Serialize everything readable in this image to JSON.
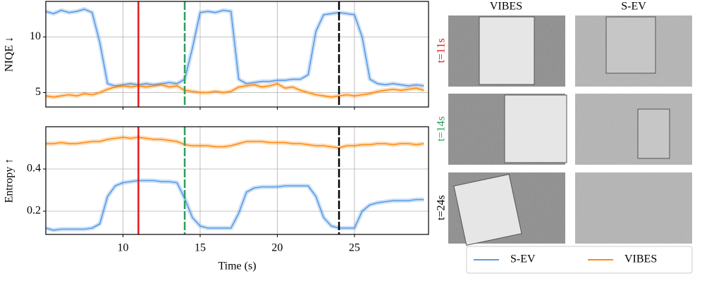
{
  "chart_data": [
    {
      "type": "line",
      "ylabel": "NIQE ↓",
      "xlim": [
        5,
        29.8
      ],
      "xticks": [
        10,
        15,
        20,
        25
      ],
      "ylim": [
        3.7,
        13.2
      ],
      "yticks": [
        5,
        10
      ],
      "grid": true,
      "x": [
        5,
        5.5,
        6,
        6.5,
        7,
        7.5,
        8,
        8.5,
        9,
        9.5,
        10,
        10.5,
        11,
        11.5,
        12,
        12.5,
        13,
        13.5,
        14,
        14.5,
        15,
        15.5,
        16,
        16.5,
        17,
        17.5,
        18,
        18.5,
        19,
        19.5,
        20,
        20.5,
        21,
        21.5,
        22,
        22.5,
        23,
        23.5,
        24,
        24.5,
        25,
        25.5,
        26,
        26.5,
        27,
        27.5,
        28,
        28.5,
        29,
        29.5
      ],
      "series": [
        {
          "name": "S-EV",
          "color": "#5a9be6",
          "values": [
            12.3,
            12.1,
            12.4,
            12.2,
            12.3,
            12.5,
            12.2,
            9.5,
            5.8,
            5.6,
            5.7,
            5.8,
            5.7,
            5.8,
            5.7,
            5.8,
            5.9,
            5.8,
            6.2,
            9.0,
            12.2,
            12.3,
            12.2,
            12.4,
            12.3,
            6.2,
            5.8,
            5.9,
            6.0,
            6.0,
            6.1,
            6.1,
            6.2,
            6.2,
            6.6,
            10.5,
            12.0,
            12.1,
            12.2,
            12.1,
            12.0,
            10.0,
            6.2,
            5.8,
            5.7,
            5.8,
            5.7,
            5.6,
            5.7,
            5.6
          ]
        },
        {
          "name": "VIBES",
          "color": "#ff8a12",
          "values": [
            4.7,
            4.6,
            4.7,
            4.8,
            4.7,
            4.9,
            4.8,
            5.0,
            5.3,
            5.5,
            5.6,
            5.5,
            5.6,
            5.5,
            5.6,
            5.7,
            5.5,
            5.6,
            5.2,
            5.1,
            5.0,
            5.0,
            5.1,
            5.0,
            5.1,
            5.5,
            5.6,
            5.7,
            5.5,
            5.6,
            5.8,
            5.4,
            5.5,
            5.2,
            5.0,
            4.8,
            4.7,
            4.6,
            4.7,
            4.8,
            4.7,
            4.8,
            4.9,
            5.1,
            5.2,
            5.3,
            5.2,
            5.3,
            5.4,
            5.2
          ]
        }
      ],
      "vlines": [
        {
          "x": 11,
          "color": "#e31a1c",
          "dashed": false
        },
        {
          "x": 14,
          "color": "#2ca05a",
          "dashed": true
        },
        {
          "x": 24,
          "color": "#000000",
          "dashed": true
        }
      ]
    },
    {
      "type": "line",
      "ylabel": "Entropy ↑",
      "xlabel": "Time (s)",
      "xlim": [
        5,
        29.8
      ],
      "xticks": [
        10,
        15,
        20,
        25
      ],
      "ylim": [
        0.09,
        0.6
      ],
      "yticks": [
        0.2,
        0.4
      ],
      "grid": true,
      "x": [
        5,
        5.5,
        6,
        6.5,
        7,
        7.5,
        8,
        8.5,
        9,
        9.5,
        10,
        10.5,
        11,
        11.5,
        12,
        12.5,
        13,
        13.5,
        14,
        14.5,
        15,
        15.5,
        16,
        16.5,
        17,
        17.5,
        18,
        18.5,
        19,
        19.5,
        20,
        20.5,
        21,
        21.5,
        22,
        22.5,
        23,
        23.5,
        24,
        24.5,
        25,
        25.5,
        26,
        26.5,
        27,
        27.5,
        28,
        28.5,
        29,
        29.5
      ],
      "series": [
        {
          "name": "S-EV",
          "color": "#5a9be6",
          "values": [
            0.12,
            0.11,
            0.115,
            0.115,
            0.115,
            0.115,
            0.12,
            0.14,
            0.27,
            0.32,
            0.335,
            0.34,
            0.345,
            0.345,
            0.345,
            0.34,
            0.34,
            0.335,
            0.26,
            0.17,
            0.13,
            0.12,
            0.12,
            0.12,
            0.12,
            0.19,
            0.29,
            0.31,
            0.315,
            0.315,
            0.315,
            0.32,
            0.32,
            0.32,
            0.32,
            0.27,
            0.17,
            0.13,
            0.12,
            0.12,
            0.12,
            0.2,
            0.23,
            0.24,
            0.245,
            0.25,
            0.25,
            0.25,
            0.255,
            0.255
          ]
        },
        {
          "name": "VIBES",
          "color": "#ff8a12",
          "values": [
            0.52,
            0.52,
            0.525,
            0.52,
            0.52,
            0.525,
            0.53,
            0.53,
            0.54,
            0.545,
            0.55,
            0.545,
            0.55,
            0.545,
            0.54,
            0.54,
            0.535,
            0.53,
            0.515,
            0.51,
            0.51,
            0.51,
            0.505,
            0.505,
            0.51,
            0.52,
            0.53,
            0.53,
            0.53,
            0.525,
            0.525,
            0.525,
            0.52,
            0.52,
            0.515,
            0.51,
            0.51,
            0.505,
            0.5,
            0.51,
            0.51,
            0.515,
            0.515,
            0.52,
            0.52,
            0.515,
            0.52,
            0.52,
            0.515,
            0.52
          ]
        }
      ],
      "vlines": [
        {
          "x": 11,
          "color": "#e31a1c",
          "dashed": false
        },
        {
          "x": 14,
          "color": "#2ca05a",
          "dashed": true
        },
        {
          "x": 24,
          "color": "#000000",
          "dashed": true
        }
      ]
    }
  ],
  "panel": {
    "columns": [
      "VIBES",
      "S-EV"
    ],
    "rows": [
      "t=11s",
      "t=14s",
      "t=24s"
    ]
  }
}
